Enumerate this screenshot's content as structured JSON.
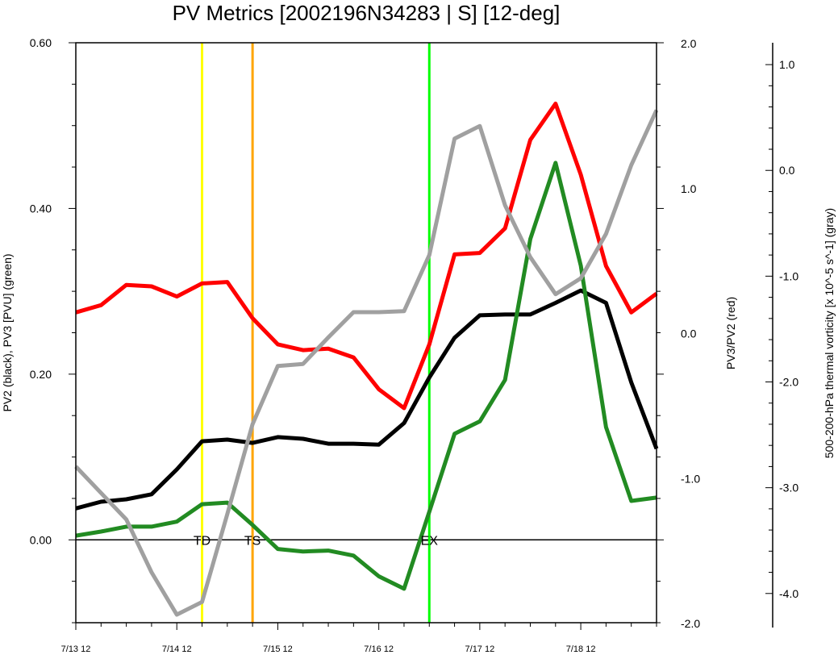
{
  "chart_data": {
    "type": "line",
    "title": "PV Metrics [2002196N34283 | S] [12-deg]",
    "ylabel_left": "PV2 (black), PV3 [PVU] (green)",
    "ylabel_right": "PV3/PV2 (red)",
    "ylabel_far_right": "500-200-hPa thermal vorticity [x 10^-5 s^-1] (gray)",
    "x_tick_labels": [
      "7/13 12",
      "7/14 12",
      "7/15 12",
      "7/16 12",
      "7/17 12",
      "7/18 12"
    ],
    "x_tick_values": [
      0,
      1,
      2,
      3,
      4,
      5
    ],
    "xlim": [
      0,
      5.75
    ],
    "y_left": {
      "lim": [
        -0.1,
        0.6
      ],
      "ticks": [
        0.0,
        0.2,
        0.4,
        0.6
      ],
      "tick_labels": [
        "0.00",
        "0.20",
        "0.40",
        "0.60"
      ]
    },
    "y_right": {
      "lim": [
        -2.0,
        2.0
      ],
      "ticks": [
        -2.0,
        -1.0,
        0.0,
        1.0,
        2.0
      ],
      "tick_labels": [
        "-2.0",
        "-1.0",
        "0.0",
        "1.0",
        "2.0"
      ]
    },
    "y_far_right": {
      "lim": [
        -4.2,
        1.1
      ],
      "ticks": [
        -4.0,
        -3.0,
        -2.0,
        -1.0,
        0.0,
        1.0
      ],
      "tick_labels": [
        "-4.0",
        "-3.0",
        "-2.0",
        "-1.0",
        "0.0",
        "1.0"
      ]
    },
    "x": [
      0,
      0.25,
      0.5,
      0.75,
      1.0,
      1.25,
      1.5,
      1.75,
      2.0,
      2.25,
      2.5,
      2.75,
      3.0,
      3.25,
      3.5,
      3.75,
      4.0,
      4.25,
      4.5,
      4.75,
      5.0,
      5.25,
      5.5,
      5.75
    ],
    "series": [
      {
        "color": "#ff0000",
        "axis": "right",
        "values": [
          0.14,
          0.19,
          0.33,
          0.32,
          0.25,
          0.34,
          0.35,
          0.1,
          -0.08,
          -0.12,
          -0.11,
          -0.17,
          -0.39,
          -0.52,
          -0.08,
          0.54,
          0.55,
          0.72,
          1.33,
          1.58,
          1.09,
          0.46,
          0.14,
          0.27
        ]
      },
      {
        "color": "#000000",
        "axis": "left",
        "values": [
          0.038,
          0.046,
          0.049,
          0.055,
          0.085,
          0.119,
          0.121,
          0.117,
          0.124,
          0.122,
          0.116,
          0.116,
          0.115,
          0.141,
          0.196,
          0.244,
          0.271,
          0.272,
          0.272,
          0.286,
          0.301,
          0.286,
          0.19,
          0.11
        ]
      },
      {
        "color": "#228b22",
        "axis": "left",
        "values": [
          0.005,
          0.01,
          0.016,
          0.016,
          0.022,
          0.043,
          0.045,
          0.018,
          -0.011,
          -0.014,
          -0.013,
          -0.019,
          -0.044,
          -0.059,
          0.034,
          0.128,
          0.143,
          0.193,
          0.363,
          0.455,
          0.331,
          0.136,
          0.047,
          0.051
        ]
      },
      {
        "color": "#a0a0a0",
        "axis": "far_right",
        "values": [
          -2.8,
          -3.05,
          -3.3,
          -3.8,
          -4.2,
          -4.08,
          -3.25,
          -2.4,
          -1.85,
          -1.83,
          -1.58,
          -1.34,
          -1.34,
          -1.33,
          -0.8,
          0.3,
          0.42,
          -0.33,
          -0.82,
          -1.17,
          -1.02,
          -0.6,
          0.05,
          0.57
        ]
      }
    ],
    "vertical_markers": [
      {
        "label": "TD",
        "x": 1.25,
        "color": "#ffff00"
      },
      {
        "label": "TS",
        "x": 1.75,
        "color": "#ffa500"
      },
      {
        "label": "EX",
        "x": 3.5,
        "color": "#00ff00"
      }
    ],
    "grid": false,
    "legend": "none"
  }
}
